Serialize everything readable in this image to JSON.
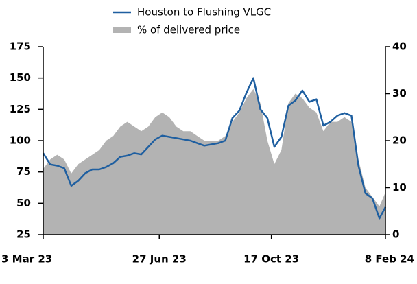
{
  "chart_data": {
    "type": "line",
    "x": [
      "2023-03-03",
      "2023-03-10",
      "2023-03-17",
      "2023-03-24",
      "2023-03-31",
      "2023-04-07",
      "2023-04-14",
      "2023-04-21",
      "2023-04-28",
      "2023-05-05",
      "2023-05-12",
      "2023-05-19",
      "2023-05-26",
      "2023-06-02",
      "2023-06-09",
      "2023-06-16",
      "2023-06-23",
      "2023-06-30",
      "2023-07-07",
      "2023-07-14",
      "2023-07-21",
      "2023-07-28",
      "2023-08-04",
      "2023-08-11",
      "2023-08-18",
      "2023-08-25",
      "2023-09-01",
      "2023-09-08",
      "2023-09-15",
      "2023-09-22",
      "2023-09-29",
      "2023-10-06",
      "2023-10-13",
      "2023-10-20",
      "2023-10-27",
      "2023-11-03",
      "2023-11-10",
      "2023-11-17",
      "2023-11-24",
      "2023-12-01",
      "2023-12-08",
      "2023-12-15",
      "2023-12-22",
      "2023-12-29",
      "2024-01-05",
      "2024-01-12",
      "2024-01-19",
      "2024-01-26",
      "2024-02-02",
      "2024-02-08"
    ],
    "series": [
      {
        "name": "Houston to Flushing VLGC",
        "type": "line",
        "color": "#1f5fa0",
        "axis": "y",
        "values": [
          90,
          81,
          80,
          78,
          64,
          68,
          74,
          77,
          77,
          79,
          82,
          87,
          88,
          90,
          89,
          95,
          101,
          104,
          103,
          102,
          101,
          100,
          98,
          96,
          97,
          98,
          100,
          118,
          124,
          138,
          150,
          125,
          118,
          95,
          103,
          128,
          132,
          140,
          131,
          133,
          112,
          115,
          120,
          122,
          120,
          80,
          58,
          54,
          38,
          47
        ]
      },
      {
        "name": "% of delivered price",
        "type": "area",
        "color": "#b3b3b3",
        "axis": "y2",
        "values": [
          14,
          16,
          17,
          16,
          13,
          15,
          16,
          17,
          18,
          20,
          21,
          23,
          24,
          23,
          22,
          23,
          25,
          26,
          25,
          23,
          22,
          22,
          21,
          20,
          20,
          20,
          21,
          24,
          26,
          29,
          31,
          28,
          20,
          15,
          18,
          28,
          30,
          29,
          27,
          26,
          22,
          24,
          24,
          25,
          24,
          16,
          10,
          8,
          6,
          9
        ]
      }
    ],
    "xlim": [
      "2023-03-03",
      "2024-02-08"
    ],
    "xticks": [
      {
        "value": "2023-03-03",
        "label": "3 Mar 23"
      },
      {
        "value": "2023-06-27",
        "label": "27 Jun 23"
      },
      {
        "value": "2023-10-17",
        "label": "17 Oct 23"
      },
      {
        "value": "2024-02-08",
        "label": "8 Feb 24"
      }
    ],
    "ylim": [
      25,
      175
    ],
    "yticks": [
      25,
      50,
      75,
      100,
      125,
      150,
      175
    ],
    "y2lim": [
      0,
      40
    ],
    "y2ticks": [
      0,
      10,
      20,
      30,
      40
    ],
    "legend": "top"
  }
}
